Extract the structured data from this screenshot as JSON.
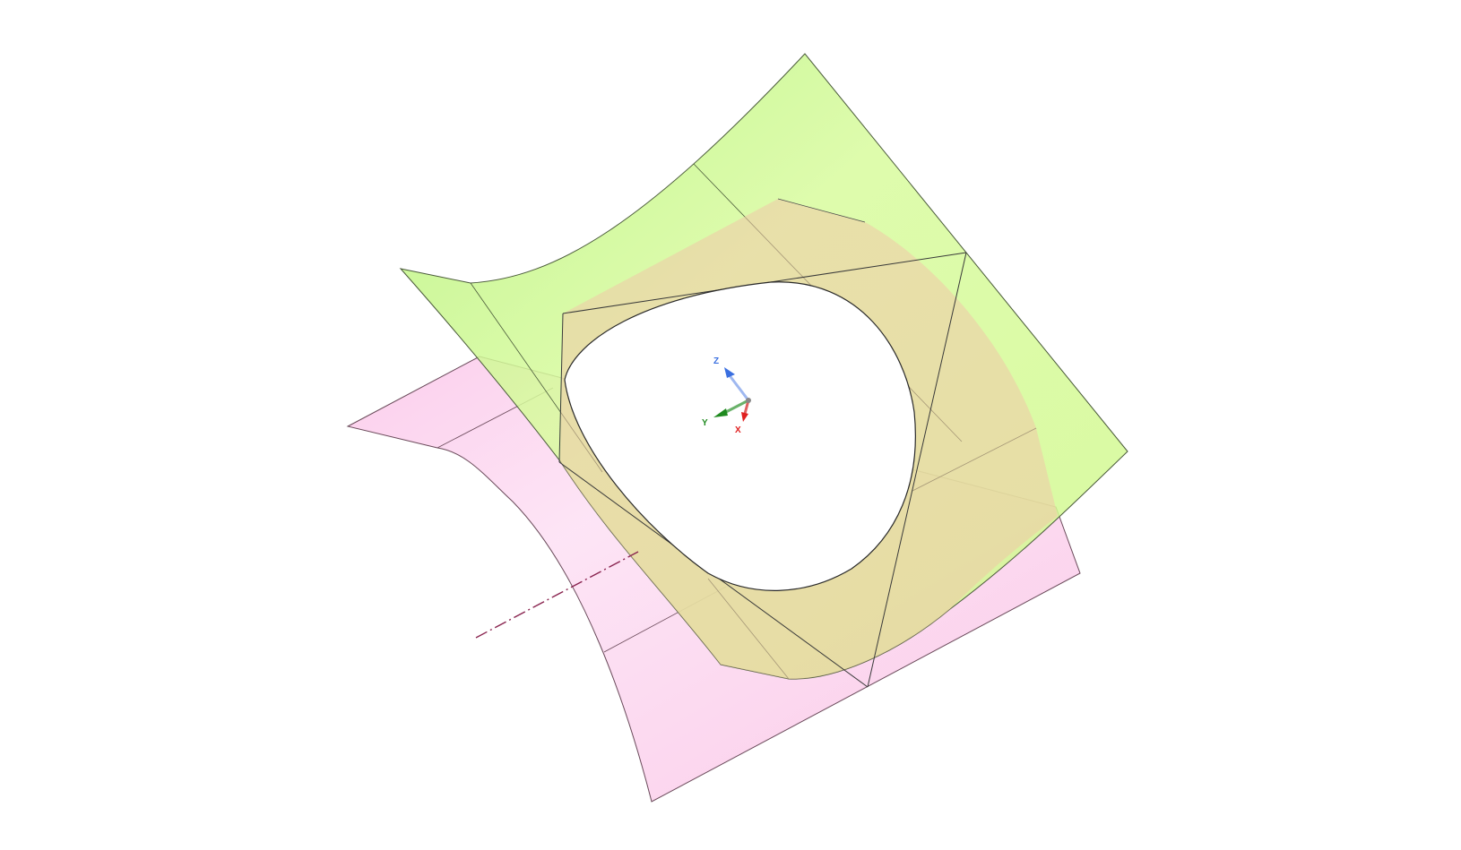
{
  "viewport": {
    "background": "#ffffff"
  },
  "triad": {
    "x_label": "X",
    "y_label": "Y",
    "z_label": "Z",
    "x_color": "#e02020",
    "y_color": "#1f8a1f",
    "z_color": "#3a6fe0"
  },
  "surfaces": {
    "pink_fill": "#f9b4e0",
    "green_fill": "#c6f77e",
    "orange_fill": "#f0c9a8",
    "edge_color": "#3a3a3a",
    "axis_line_color": "#8a2550"
  }
}
